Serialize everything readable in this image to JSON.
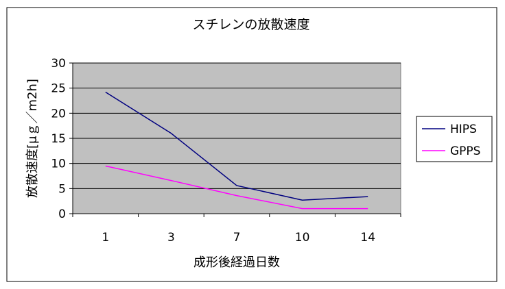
{
  "chart_data": {
    "type": "line",
    "title": "スチレンの放散速度",
    "xlabel": "成形後経過日数",
    "ylabel": "放散速度[μｇ／m2h]",
    "categories": [
      "1",
      "3",
      "7",
      "10",
      "14"
    ],
    "ylim": [
      0,
      30
    ],
    "yticks": [
      "0",
      "5",
      "10",
      "15",
      "20",
      "25",
      "30"
    ],
    "grid": true,
    "legend_position": "right",
    "plot_background": "#c0c0c0",
    "series": [
      {
        "name": "HIPS",
        "color": "#000080",
        "values": [
          24.2,
          16.0,
          5.6,
          2.7,
          3.4
        ]
      },
      {
        "name": "GPPS",
        "color": "#ff00ff",
        "values": [
          9.5,
          6.6,
          3.6,
          1.0,
          1.0
        ]
      }
    ]
  }
}
